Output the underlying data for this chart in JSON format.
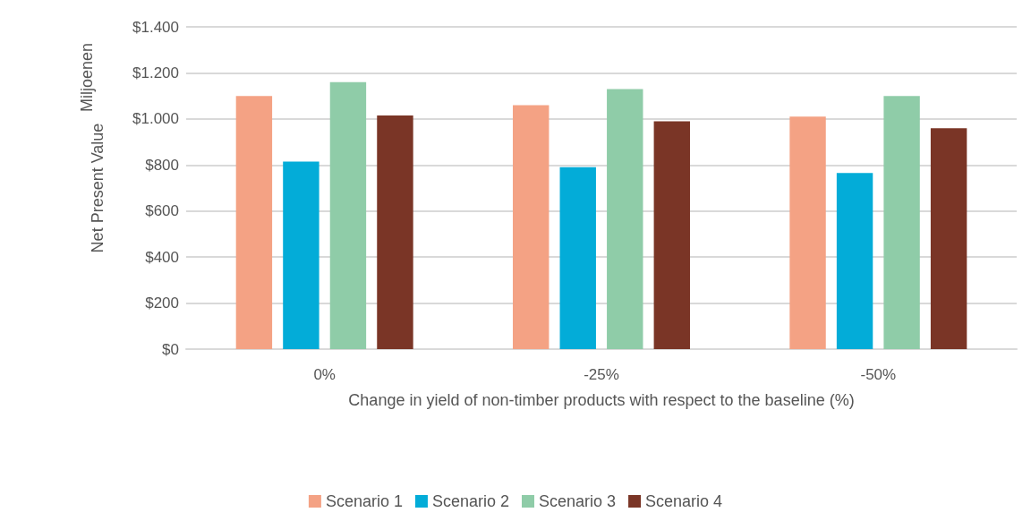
{
  "chart_data": {
    "type": "bar",
    "categories": [
      "0%",
      "-25%",
      "-50%"
    ],
    "xlabel": "Change in yield of non-timber products with respect to the baseline (%)",
    "ylabel": "Net Present Value",
    "annotations": [
      "Miljoenen"
    ],
    "series": [
      {
        "name": "Scenario 1",
        "color": "#f4a284",
        "values": [
          1100,
          1060,
          1010
        ]
      },
      {
        "name": "Scenario 2",
        "color": "#03acd8",
        "values": [
          815,
          790,
          765
        ]
      },
      {
        "name": "Scenario 3",
        "color": "#8fcca8",
        "values": [
          1160,
          1130,
          1100
        ]
      },
      {
        "name": "Scenario 4",
        "color": "#7a3526",
        "values": [
          1015,
          990,
          960
        ]
      }
    ],
    "ylim": [
      0,
      1400
    ],
    "yticks": [
      {
        "value": 0,
        "label": "$0"
      },
      {
        "value": 200,
        "label": "$200"
      },
      {
        "value": 400,
        "label": "$400"
      },
      {
        "value": 600,
        "label": "$600"
      },
      {
        "value": 800,
        "label": "$800"
      },
      {
        "value": 1000,
        "label": "$1.000"
      },
      {
        "value": 1200,
        "label": "$1.200"
      },
      {
        "value": 1400,
        "label": "$1.400"
      }
    ],
    "grid": "y",
    "legend": "bottom"
  }
}
